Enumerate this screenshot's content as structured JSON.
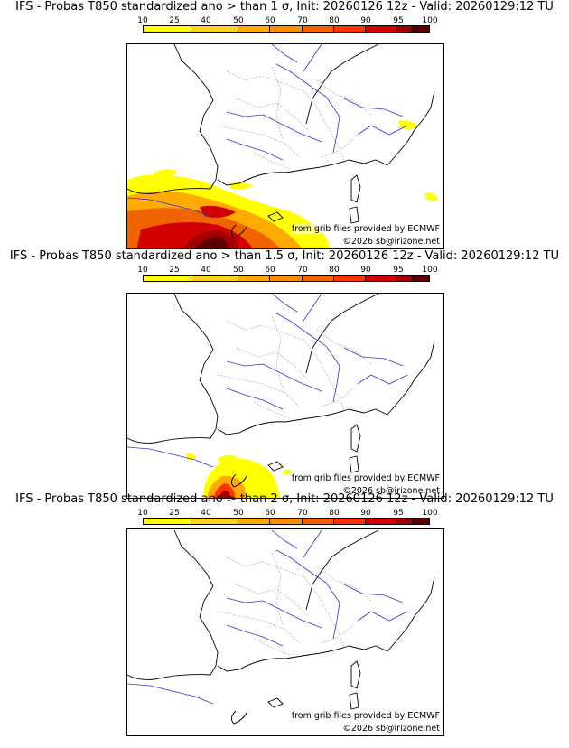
{
  "colorbar": {
    "ticks": [
      "10",
      "25",
      "40",
      "50",
      "60",
      "70",
      "80",
      "90",
      "95",
      "100"
    ],
    "colors": [
      "#ffff00",
      "#ffd21e",
      "#ffaa00",
      "#ff8c00",
      "#f06400",
      "#ff3200",
      "#d20000",
      "#a00000",
      "#5a0000"
    ]
  },
  "panels": [
    {
      "title": "IFS - Probas T850  standardized ano > than 1 σ, Init: 20260126 12z - Valid: 20260129:12 TU",
      "credit_line1": "from grib files provided by ECMWF",
      "credit_line2": "©2026 sb@irizone.net",
      "anomaly_level": "1 σ"
    },
    {
      "title": "IFS - Probas T850  standardized ano > than 1.5 σ, Init: 20260126 12z - Valid: 20260129:12 TU",
      "credit_line1": "from grib files provided by ECMWF",
      "credit_line2": "©2026 sb@irizone.net",
      "anomaly_level": "1.5 σ"
    },
    {
      "title": "IFS - Probas T850  standardized ano > than 2 σ, Init: 20260126 12z - Valid: 20260129:12 TU",
      "credit_line1": "from grib files provided by ECMWF",
      "credit_line2": "©2026 sb@irizone.net",
      "anomaly_level": "2 σ"
    }
  ]
}
